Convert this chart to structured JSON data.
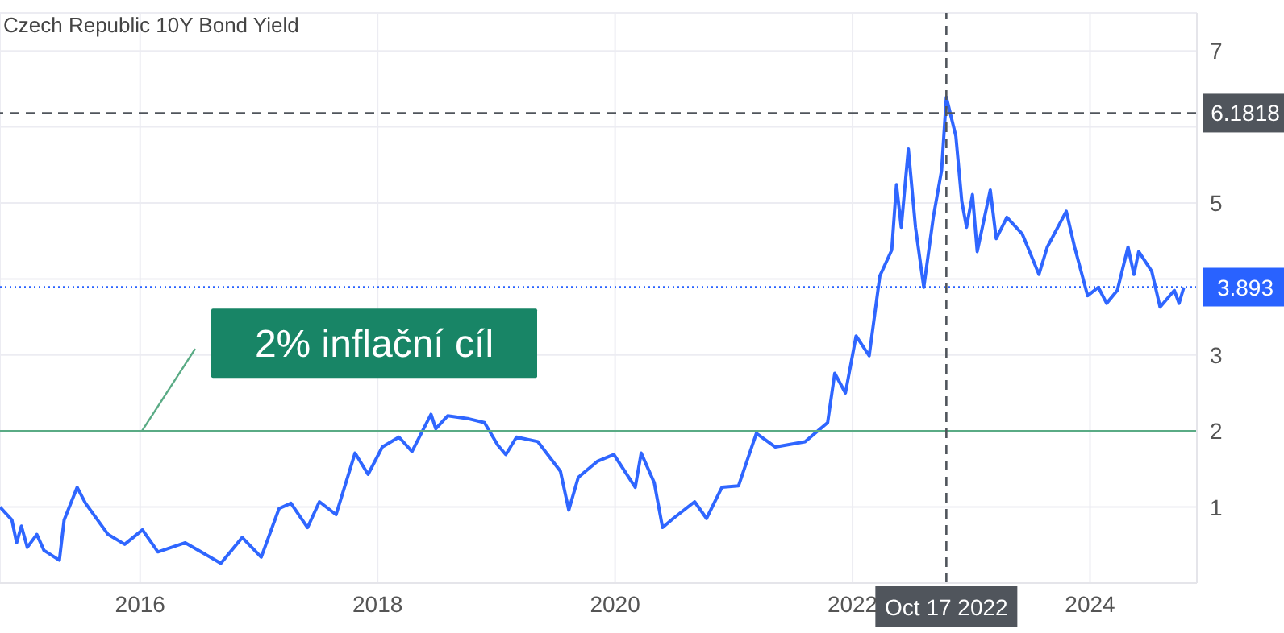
{
  "chart_data": {
    "type": "line",
    "title": "Czech Republic 10Y Bond Yield",
    "x": [
      2014.82,
      2014.92,
      2014.96,
      2015.0,
      2015.05,
      2015.13,
      2015.19,
      2015.32,
      2015.36,
      2015.47,
      2015.54,
      2015.73,
      2015.87,
      2016.02,
      2016.15,
      2016.38,
      2016.68,
      2016.86,
      2017.02,
      2017.17,
      2017.27,
      2017.41,
      2017.51,
      2017.65,
      2017.81,
      2017.92,
      2018.04,
      2018.18,
      2018.29,
      2018.45,
      2018.49,
      2018.59,
      2018.77,
      2018.9,
      2019.01,
      2019.08,
      2019.17,
      2019.35,
      2019.54,
      2019.61,
      2019.69,
      2019.85,
      2019.99,
      2020.17,
      2020.22,
      2020.33,
      2020.4,
      2020.49,
      2020.67,
      2020.77,
      2020.9,
      2021.04,
      2021.19,
      2021.35,
      2021.6,
      2021.79,
      2021.85,
      2021.94,
      2022.03,
      2022.14,
      2022.23,
      2022.33,
      2022.37,
      2022.41,
      2022.47,
      2022.53,
      2022.6,
      2022.68,
      2022.75,
      2022.79,
      2022.87,
      2022.92,
      2022.96,
      2023.01,
      2023.05,
      2023.16,
      2023.21,
      2023.3,
      2023.43,
      2023.57,
      2023.64,
      2023.8,
      2023.87,
      2023.98,
      2024.07,
      2024.14,
      2024.23,
      2024.32,
      2024.37,
      2024.41,
      2024.52,
      2024.59,
      2024.71,
      2024.75,
      2024.79
    ],
    "series": [
      {
        "color": "#2f66ff",
        "values": [
          1.0,
          0.83,
          0.53,
          0.75,
          0.47,
          0.64,
          0.43,
          0.3,
          0.83,
          1.26,
          1.05,
          0.64,
          0.51,
          0.7,
          0.41,
          0.53,
          0.26,
          0.6,
          0.34,
          0.98,
          1.05,
          0.73,
          1.07,
          0.9,
          1.71,
          1.43,
          1.79,
          1.92,
          1.73,
          2.22,
          2.03,
          2.2,
          2.16,
          2.11,
          1.82,
          1.69,
          1.92,
          1.86,
          1.47,
          0.96,
          1.39,
          1.6,
          1.69,
          1.26,
          1.71,
          1.32,
          0.73,
          0.85,
          1.07,
          0.85,
          1.26,
          1.28,
          1.97,
          1.79,
          1.86,
          2.11,
          2.76,
          2.5,
          3.25,
          2.99,
          4.04,
          4.38,
          5.24,
          4.68,
          5.71,
          4.68,
          3.89,
          4.81,
          5.43,
          6.39,
          5.88,
          5.02,
          4.68,
          5.11,
          4.36,
          5.17,
          4.53,
          4.81,
          4.59,
          4.06,
          4.42,
          4.89,
          4.42,
          3.78,
          3.89,
          3.68,
          3.85,
          4.42,
          4.06,
          4.36,
          4.1,
          3.63,
          3.85,
          3.68,
          3.89
        ]
      }
    ],
    "xlim": [
      2014.82,
      2024.9
    ],
    "xticks": [
      2016,
      2018,
      2020,
      2022,
      2024
    ],
    "ylim": [
      0,
      7.5
    ],
    "yticks": [
      {
        "value": 0,
        "label": null
      },
      1,
      2,
      3,
      {
        "value": 4,
        "label": null
      },
      5,
      {
        "value": 6,
        "label": null
      },
      7
    ],
    "grid": true,
    "marker": "none",
    "line_style": "solid",
    "ref_lines": [
      {
        "axis": "y",
        "value": 2,
        "label": "2% inflační cíl",
        "color": "#5aab85",
        "line_style": "solid"
      },
      {
        "axis": "y",
        "value": 6.1818,
        "label": "6.1818",
        "color": "#50555c",
        "line_style": "dashed"
      },
      {
        "axis": "y",
        "value": 3.893,
        "label": "3.893",
        "color": "#2962ff",
        "line_style": "dotted"
      },
      {
        "axis": "x",
        "value": 2022.79,
        "label": "Oct 17 2022",
        "color": "#50555c",
        "line_style": "dashed"
      }
    ]
  }
}
